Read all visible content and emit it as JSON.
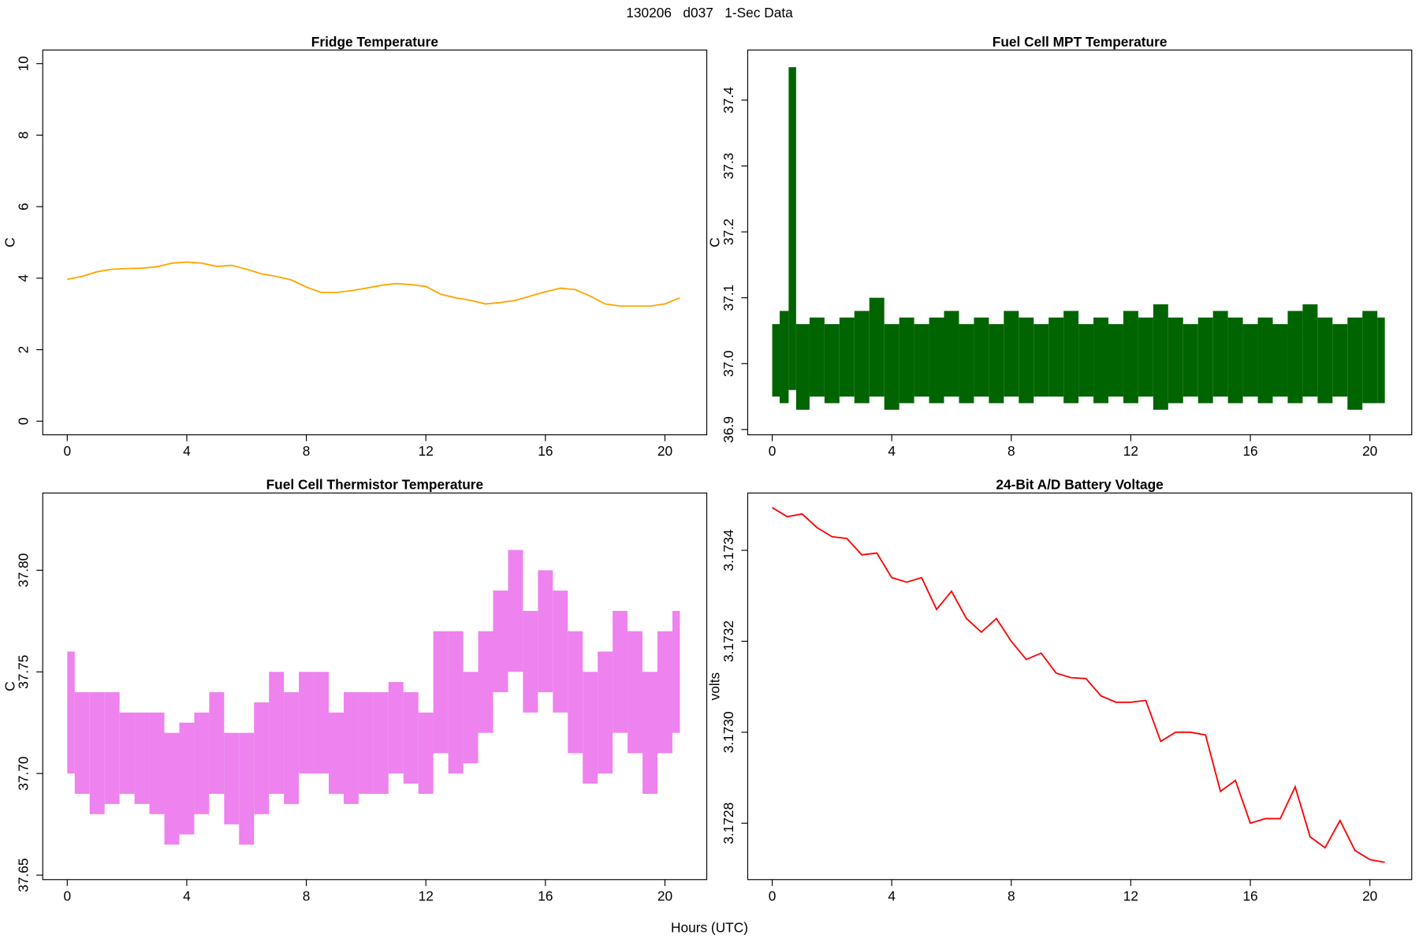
{
  "title": "130206   d037   1-Sec Data",
  "xlabel": "Hours (UTC)",
  "chart_data": [
    {
      "type": "line",
      "title": "Fridge Temperature",
      "ylabel": "C",
      "color": "#ffa500",
      "x": [
        0,
        0.5,
        1,
        1.5,
        2,
        2.5,
        3,
        3.5,
        4,
        4.5,
        5,
        5.5,
        6,
        6.5,
        7,
        7.5,
        8,
        8.5,
        9,
        9.5,
        10,
        10.5,
        11,
        11.5,
        12,
        12.5,
        13,
        13.5,
        14,
        14.5,
        15,
        15.5,
        16,
        16.5,
        17,
        17.5,
        18,
        18.5,
        19,
        19.5,
        20,
        20.5
      ],
      "values": [
        3.97,
        4.05,
        4.18,
        4.25,
        4.27,
        4.28,
        4.32,
        4.42,
        4.45,
        4.42,
        4.33,
        4.36,
        4.25,
        4.12,
        4.05,
        3.95,
        3.75,
        3.6,
        3.6,
        3.65,
        3.72,
        3.8,
        3.85,
        3.82,
        3.77,
        3.55,
        3.45,
        3.38,
        3.28,
        3.32,
        3.38,
        3.5,
        3.62,
        3.72,
        3.68,
        3.5,
        3.28,
        3.22,
        3.22,
        3.22,
        3.28,
        3.45
      ],
      "xlim": [
        -0.82,
        21.4
      ],
      "xticks": [
        0,
        4,
        8,
        12,
        16,
        20
      ],
      "ylim": [
        -0.38,
        10.38
      ],
      "yticks": [
        0,
        2,
        4,
        6,
        8,
        10
      ]
    },
    {
      "type": "range",
      "title": "Fuel Cell MPT Temperature",
      "ylabel": "C",
      "color": "#006400",
      "x": [
        0,
        0.5,
        0.6,
        1,
        1.5,
        2,
        2.5,
        3,
        3.5,
        4,
        4.5,
        5,
        5.5,
        6,
        6.5,
        7,
        7.5,
        8,
        8.5,
        9,
        9.5,
        10,
        10.5,
        11,
        11.5,
        12,
        12.5,
        13,
        13.5,
        14,
        14.5,
        15,
        15.5,
        16,
        16.5,
        17,
        17.5,
        18,
        18.5,
        19,
        19.5,
        20,
        20.5
      ],
      "low": [
        36.95,
        36.94,
        36.96,
        36.93,
        36.95,
        36.94,
        36.95,
        36.94,
        36.95,
        36.93,
        36.94,
        36.95,
        36.94,
        36.95,
        36.94,
        36.95,
        36.94,
        36.95,
        36.94,
        36.95,
        36.95,
        36.94,
        36.95,
        36.94,
        36.95,
        36.94,
        36.95,
        36.93,
        36.94,
        36.95,
        36.94,
        36.95,
        36.94,
        36.95,
        36.94,
        36.95,
        36.94,
        36.95,
        36.94,
        36.95,
        36.93,
        36.94,
        36.94
      ],
      "high": [
        37.06,
        37.08,
        37.45,
        37.06,
        37.07,
        37.06,
        37.07,
        37.08,
        37.1,
        37.06,
        37.07,
        37.06,
        37.07,
        37.08,
        37.06,
        37.07,
        37.06,
        37.08,
        37.07,
        37.06,
        37.07,
        37.08,
        37.06,
        37.07,
        37.06,
        37.08,
        37.07,
        37.09,
        37.07,
        37.06,
        37.07,
        37.08,
        37.07,
        37.06,
        37.07,
        37.06,
        37.08,
        37.09,
        37.07,
        37.06,
        37.07,
        37.08,
        37.07
      ],
      "xlim": [
        -0.82,
        21.4
      ],
      "xticks": [
        0,
        4,
        8,
        12,
        16,
        20
      ],
      "ylim": [
        36.892,
        37.476
      ],
      "yticks": [
        36.9,
        {
          "value": 37,
          "label": "37.0"
        },
        37.1,
        37.2,
        37.3,
        37.4
      ]
    },
    {
      "type": "range",
      "title": "Fuel Cell Thermistor Temperature",
      "ylabel": "C",
      "color": "#ee82ee",
      "x": [
        0,
        0.5,
        1,
        1.5,
        2,
        2.5,
        3,
        3.5,
        4,
        4.5,
        5,
        5.5,
        6,
        6.5,
        7,
        7.5,
        8,
        8.5,
        9,
        9.5,
        10,
        10.5,
        11,
        11.5,
        12,
        12.5,
        13,
        13.5,
        14,
        14.5,
        15,
        15.5,
        16,
        16.5,
        17,
        17.5,
        18,
        18.5,
        19,
        19.5,
        20,
        20.5
      ],
      "low": [
        37.7,
        37.69,
        37.68,
        37.685,
        37.69,
        37.685,
        37.68,
        37.665,
        37.67,
        37.68,
        37.69,
        37.675,
        37.665,
        37.68,
        37.69,
        37.685,
        37.7,
        37.7,
        37.69,
        37.685,
        37.69,
        37.69,
        37.7,
        37.695,
        37.69,
        37.71,
        37.7,
        37.705,
        37.72,
        37.74,
        37.75,
        37.73,
        37.74,
        37.73,
        37.71,
        37.695,
        37.7,
        37.72,
        37.71,
        37.69,
        37.71,
        37.72
      ],
      "high": [
        37.76,
        37.74,
        37.74,
        37.74,
        37.73,
        37.73,
        37.73,
        37.72,
        37.725,
        37.73,
        37.74,
        37.72,
        37.72,
        37.735,
        37.75,
        37.74,
        37.75,
        37.75,
        37.73,
        37.74,
        37.74,
        37.74,
        37.745,
        37.74,
        37.73,
        37.77,
        37.77,
        37.75,
        37.77,
        37.79,
        37.81,
        37.78,
        37.8,
        37.79,
        37.77,
        37.75,
        37.76,
        37.78,
        37.77,
        37.75,
        37.77,
        37.78
      ],
      "xlim": [
        -0.82,
        21.4
      ],
      "xticks": [
        0,
        4,
        8,
        12,
        16,
        20
      ],
      "ylim": [
        37.6478,
        37.838
      ],
      "yticks": [
        37.65,
        {
          "value": 37.7,
          "label": "37.70"
        },
        37.75,
        {
          "value": 37.8,
          "label": "37.80"
        }
      ]
    },
    {
      "type": "line",
      "title": "24-Bit A/D Battery Voltage",
      "ylabel": "volts",
      "color": "#ff0000",
      "x": [
        0,
        0.5,
        1,
        1.5,
        2,
        2.5,
        3,
        3.5,
        4,
        4.5,
        5,
        5.5,
        6,
        6.5,
        7,
        7.5,
        8,
        8.5,
        9,
        9.5,
        10,
        10.5,
        11,
        11.5,
        12,
        12.5,
        13,
        13.5,
        14,
        14.5,
        15,
        15.5,
        16,
        16.5,
        17,
        17.5,
        18,
        18.5,
        19,
        19.5,
        20,
        20.5
      ],
      "values": [
        3.173494,
        3.173474,
        3.17348,
        3.17345,
        3.17343,
        3.173426,
        3.17339,
        3.173394,
        3.17334,
        3.17333,
        3.17334,
        3.17327,
        3.17331,
        3.17325,
        3.17322,
        3.17325,
        3.1732,
        3.17316,
        3.173174,
        3.17313,
        3.17312,
        3.173118,
        3.17308,
        3.173066,
        3.173066,
        3.17307,
        3.17298,
        3.173,
        3.173,
        3.172994,
        3.17287,
        3.172894,
        3.1728,
        3.17281,
        3.17281,
        3.17288,
        3.17277,
        3.172746,
        3.172806,
        3.17274,
        3.17272,
        3.172714
      ],
      "xlim": [
        -0.82,
        21.4
      ],
      "xticks": [
        0,
        4,
        8,
        12,
        16,
        20
      ],
      "ylim": [
        3.172676,
        3.173526
      ],
      "yticks": [
        3.1728,
        {
          "value": 3.173,
          "label": "3.1730"
        },
        3.1732,
        3.1734
      ]
    }
  ]
}
